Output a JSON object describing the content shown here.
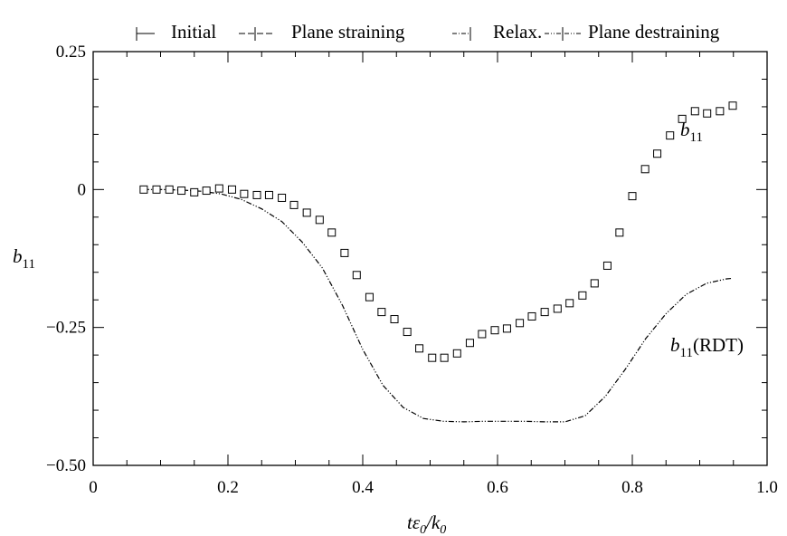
{
  "chart_data": {
    "type": "scatter",
    "title": "",
    "xlabel_main": "tε",
    "xlabel_sub1": "0",
    "xlabel_slash": "/k",
    "xlabel_sub2": "0",
    "ylabel_main": "b",
    "ylabel_sub": "11",
    "xlim": [
      0,
      1.0
    ],
    "ylim": [
      -0.5,
      0.25
    ],
    "x_ticks": [
      {
        "value": 0,
        "label": "0"
      },
      {
        "value": 0.2,
        "label": "0.2"
      },
      {
        "value": 0.4,
        "label": "0.4"
      },
      {
        "value": 0.6,
        "label": "0.6"
      },
      {
        "value": 0.8,
        "label": "0.8"
      },
      {
        "value": 1.0,
        "label": "1.0"
      }
    ],
    "y_ticks": [
      {
        "value": 0.25,
        "label": "0.25"
      },
      {
        "value": 0,
        "label": "0"
      },
      {
        "value": -0.25,
        "label": "−0.25"
      },
      {
        "value": -0.5,
        "label": "−0.50"
      }
    ],
    "legend": {
      "placement": "top",
      "items": [
        "Initial",
        "Plane straining",
        "Relax.",
        "Plane destraining"
      ]
    },
    "series": [
      {
        "name": "b11",
        "marker": "open-square",
        "label_main": "b",
        "label_sub": "11",
        "x": [
          0.075,
          0.094,
          0.113,
          0.131,
          0.15,
          0.168,
          0.187,
          0.206,
          0.224,
          0.243,
          0.261,
          0.28,
          0.298,
          0.317,
          0.336,
          0.354,
          0.373,
          0.391,
          0.41,
          0.428,
          0.447,
          0.466,
          0.484,
          0.503,
          0.521,
          0.54,
          0.559,
          0.577,
          0.596,
          0.614,
          0.633,
          0.651,
          0.67,
          0.689,
          0.707,
          0.726,
          0.744,
          0.763,
          0.781,
          0.8,
          0.819,
          0.837,
          0.856,
          0.874,
          0.893,
          0.911,
          0.93,
          0.949
        ],
        "y": [
          0.0,
          0.0,
          0.0,
          -0.002,
          -0.005,
          -0.002,
          0.002,
          0.0,
          -0.008,
          -0.01,
          -0.01,
          -0.015,
          -0.028,
          -0.042,
          -0.055,
          -0.078,
          -0.115,
          -0.155,
          -0.195,
          -0.222,
          -0.235,
          -0.258,
          -0.288,
          -0.305,
          -0.305,
          -0.297,
          -0.278,
          -0.262,
          -0.255,
          -0.252,
          -0.242,
          -0.23,
          -0.222,
          -0.216,
          -0.206,
          -0.192,
          -0.17,
          -0.138,
          -0.078,
          -0.012,
          0.037,
          0.065,
          0.098,
          0.128,
          0.142,
          0.138,
          0.142,
          0.152
        ]
      },
      {
        "name": "b11(RDT)",
        "line": "dash-dot-dot",
        "label_main": "b",
        "label_sub": "11",
        "label_suffix": "(RDT)",
        "x": [
          0.075,
          0.1,
          0.13,
          0.16,
          0.19,
          0.22,
          0.25,
          0.28,
          0.31,
          0.34,
          0.37,
          0.4,
          0.43,
          0.46,
          0.49,
          0.52,
          0.55,
          0.58,
          0.61,
          0.64,
          0.67,
          0.7,
          0.73,
          0.76,
          0.79,
          0.82,
          0.85,
          0.88,
          0.91,
          0.94,
          0.949
        ],
        "y": [
          0.0,
          0.0,
          -0.001,
          -0.003,
          -0.008,
          -0.018,
          -0.035,
          -0.058,
          -0.095,
          -0.142,
          -0.21,
          -0.29,
          -0.355,
          -0.395,
          -0.415,
          -0.42,
          -0.421,
          -0.42,
          -0.42,
          -0.42,
          -0.421,
          -0.421,
          -0.41,
          -0.375,
          -0.325,
          -0.27,
          -0.225,
          -0.19,
          -0.17,
          -0.162,
          -0.161
        ]
      }
    ]
  }
}
